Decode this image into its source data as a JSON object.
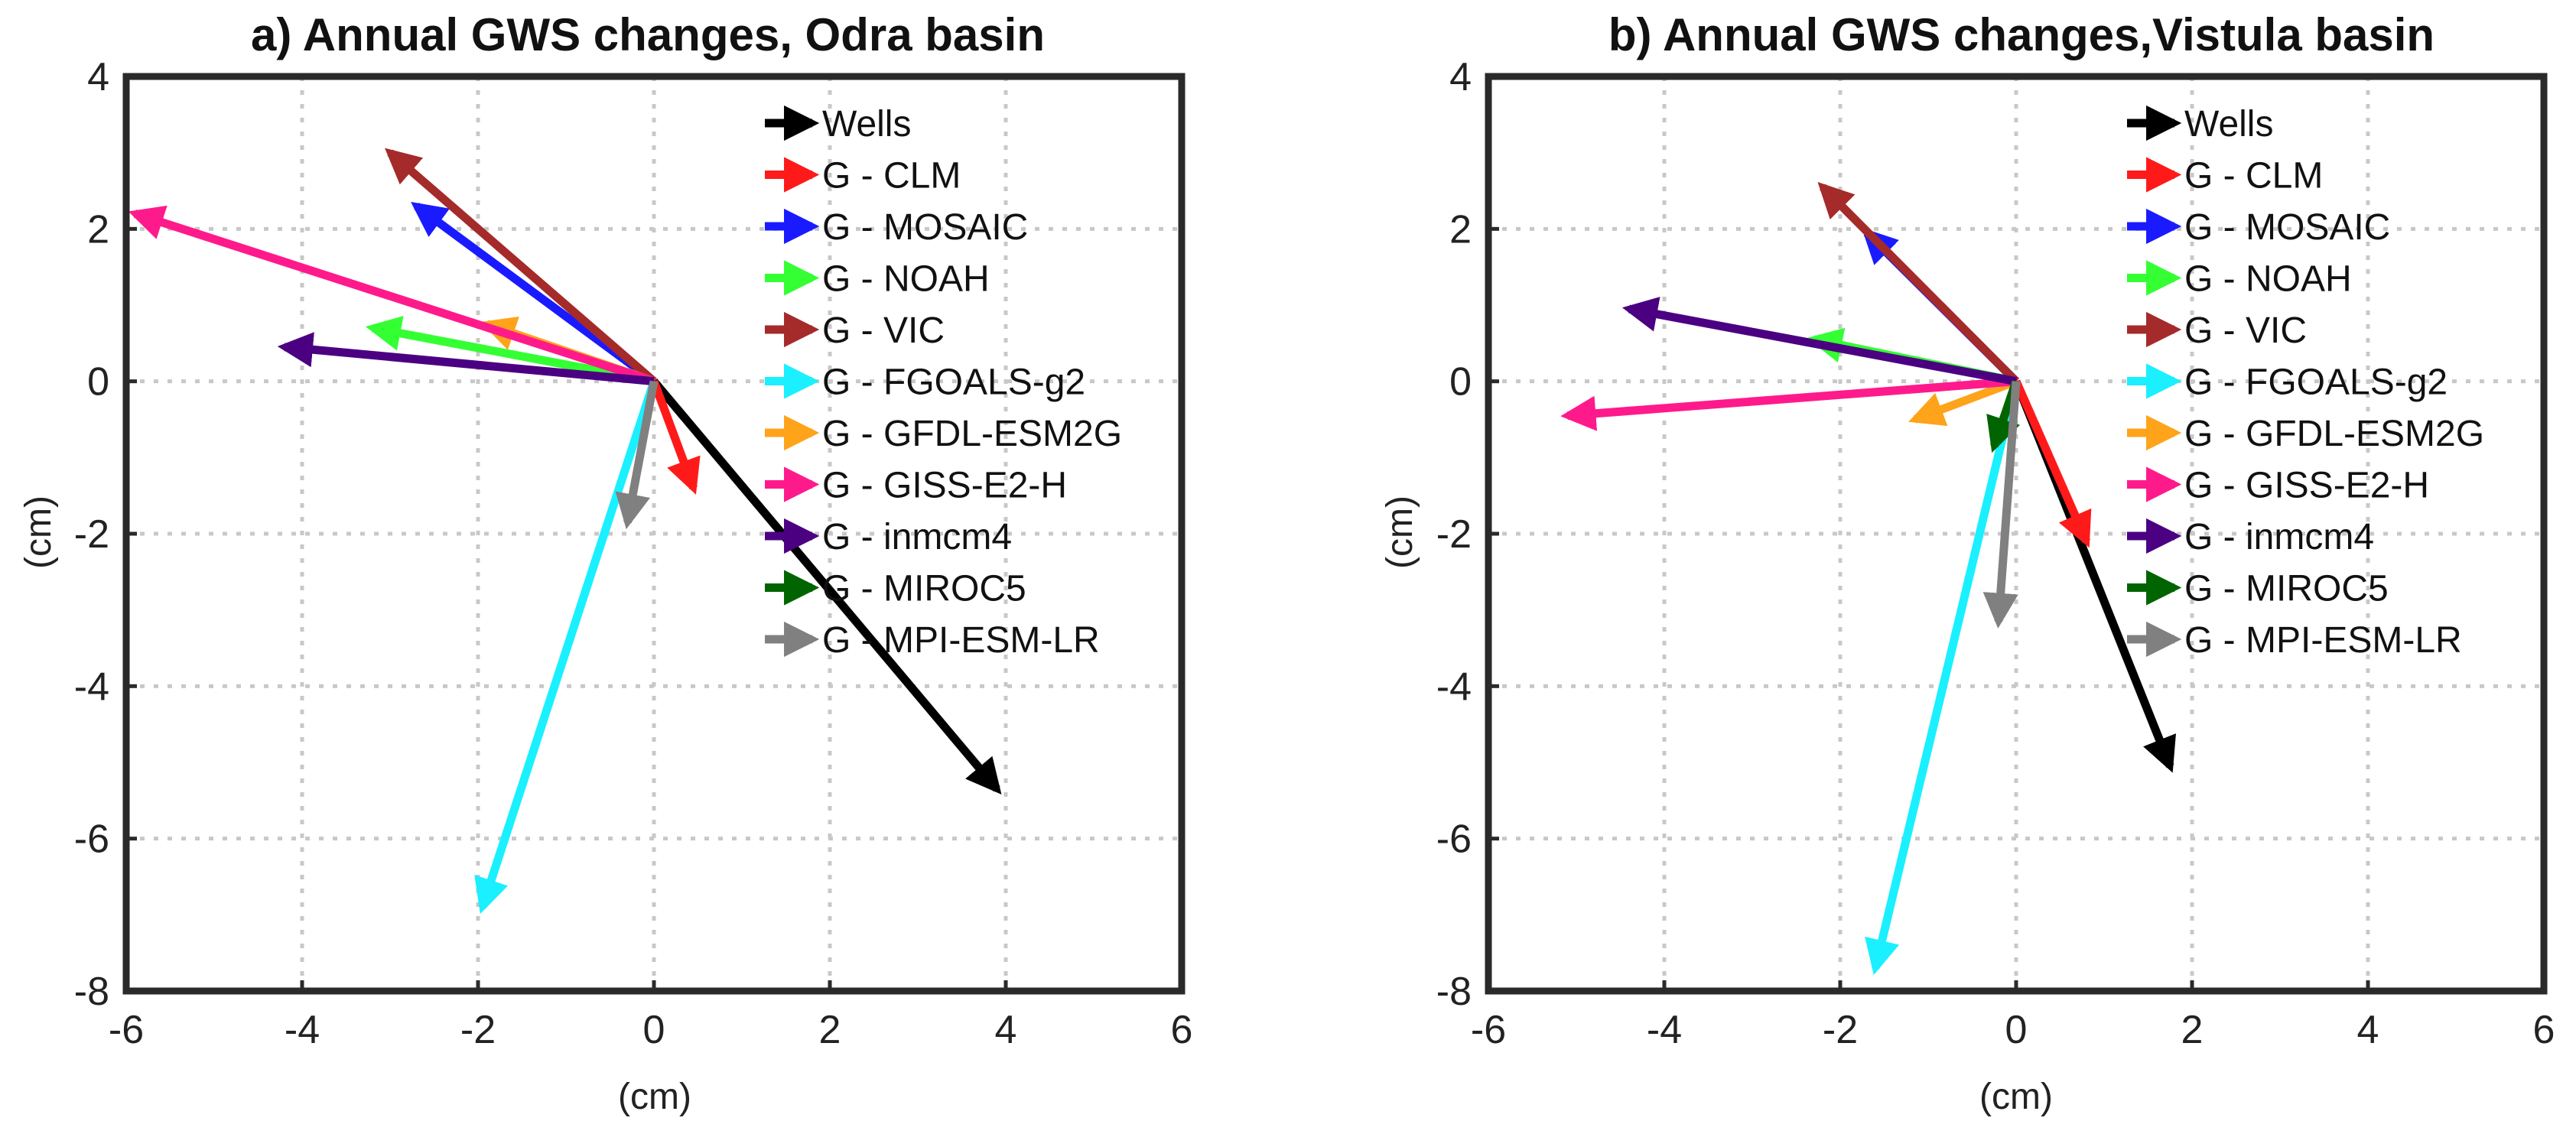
{
  "colors": {
    "Wells": "#000000",
    "G - CLM": "#ff1a1a",
    "G - MOSAIC": "#1a1aff",
    "G - NOAH": "#33ff33",
    "G - VIC": "#a52a2a",
    "G - FGOALS-g2": "#1af0ff",
    "G - GFDL-ESM2G": "#ffa31a",
    "G - GISS-E2-H": "#ff1a8c",
    "G - inmcm4": "#4b0082",
    "G - MIROC5": "#006400",
    "G - MPI-ESM-LR": "#808080"
  },
  "chart_data": [
    {
      "type": "quiver",
      "title": "a) Annual GWS changes, Odra basin",
      "xlabel": "(cm)",
      "ylabel": "(cm)",
      "xlim": [
        -6,
        6
      ],
      "ylim": [
        -8,
        4
      ],
      "xticks": [
        "-6",
        "-4",
        "-2",
        "0",
        "2",
        "4",
        "6"
      ],
      "yticks": [
        "4",
        "2",
        "0",
        "-2",
        "-4",
        "-6",
        "-8"
      ],
      "grid": true,
      "legend_position": "top-right",
      "series": [
        {
          "name": "Wells",
          "u": 3.9,
          "v": -5.35
        },
        {
          "name": "G - CLM",
          "u": 0.45,
          "v": -1.4
        },
        {
          "name": "G - MOSAIC",
          "u": -2.7,
          "v": 2.3
        },
        {
          "name": "G - NOAH",
          "u": -3.2,
          "v": 0.7
        },
        {
          "name": "G - VIC",
          "u": -3.0,
          "v": 3.0
        },
        {
          "name": "G - FGOALS-g2",
          "u": -1.95,
          "v": -6.9
        },
        {
          "name": "G - GFDL-ESM2G",
          "u": -1.9,
          "v": 0.75
        },
        {
          "name": "G - GISS-E2-H",
          "u": -5.9,
          "v": 2.2
        },
        {
          "name": "G - inmcm4",
          "u": -4.2,
          "v": 0.45
        },
        {
          "name": "G - MIROC5",
          "u": 0.0,
          "v": 0.0
        },
        {
          "name": "G - MPI-ESM-LR",
          "u": -0.3,
          "v": -1.85
        }
      ]
    },
    {
      "type": "quiver",
      "title": "b) Annual GWS changes,Vistula basin",
      "xlabel": "(cm)",
      "ylabel": "(cm)",
      "xlim": [
        -6,
        6
      ],
      "ylim": [
        -8,
        4
      ],
      "xticks": [
        "-6",
        "-4",
        "-2",
        "0",
        "2",
        "4",
        "6"
      ],
      "yticks": [
        "4",
        "2",
        "0",
        "-2",
        "-4",
        "-6",
        "-8"
      ],
      "grid": true,
      "legend_position": "top-right",
      "series": [
        {
          "name": "Wells",
          "u": 1.75,
          "v": -5.05
        },
        {
          "name": "G - CLM",
          "u": 0.8,
          "v": -2.1
        },
        {
          "name": "G - MOSAIC",
          "u": -1.7,
          "v": 1.95
        },
        {
          "name": "G - NOAH",
          "u": -2.3,
          "v": 0.55
        },
        {
          "name": "G - VIC",
          "u": -2.2,
          "v": 2.55
        },
        {
          "name": "G - FGOALS-g2",
          "u": -1.6,
          "v": -7.7
        },
        {
          "name": "G - GFDL-ESM2G",
          "u": -1.15,
          "v": -0.5
        },
        {
          "name": "G - GISS-E2-H",
          "u": -5.1,
          "v": -0.45
        },
        {
          "name": "G - inmcm4",
          "u": -4.4,
          "v": 0.95
        },
        {
          "name": "G - MIROC5",
          "u": -0.25,
          "v": -0.85
        },
        {
          "name": "G - MPI-ESM-LR",
          "u": -0.2,
          "v": -3.15
        }
      ]
    }
  ]
}
